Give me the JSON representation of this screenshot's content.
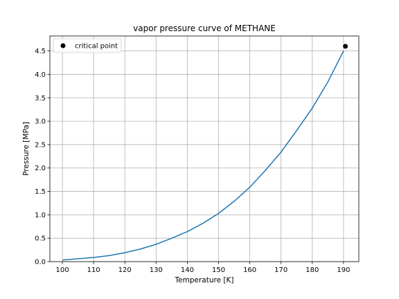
{
  "chart_data": {
    "type": "line",
    "title": "vapor pressure curve of METHANE",
    "xlabel": "Temperature [K]",
    "ylabel": "Pressure [MPa]",
    "xlim": [
      96,
      194.9
    ],
    "ylim": [
      0,
      4.82
    ],
    "xticks": [
      100,
      110,
      120,
      130,
      140,
      150,
      160,
      170,
      180,
      190
    ],
    "yticks": [
      0.0,
      0.5,
      1.0,
      1.5,
      2.0,
      2.5,
      3.0,
      3.5,
      4.0,
      4.5
    ],
    "ytick_labels": [
      "0.0",
      "0.5",
      "1.0",
      "1.5",
      "2.0",
      "2.5",
      "3.0",
      "3.5",
      "4.0",
      "4.5"
    ],
    "grid": true,
    "legend_position": "top-left",
    "series": [
      {
        "type": "line",
        "color": "#1f77b4",
        "x": [
          100,
          105,
          110,
          115,
          120,
          125,
          130,
          135,
          140,
          145,
          150,
          155,
          160,
          165,
          170,
          175,
          180,
          185,
          190
        ],
        "y": [
          0.035,
          0.061,
          0.089,
          0.13,
          0.19,
          0.27,
          0.37,
          0.5,
          0.64,
          0.82,
          1.03,
          1.29,
          1.59,
          1.95,
          2.34,
          2.8,
          3.28,
          3.84,
          4.5
        ]
      },
      {
        "type": "scatter",
        "name": "critical point",
        "color": "#000000",
        "x": [
          190.6
        ],
        "y": [
          4.6
        ]
      }
    ]
  }
}
